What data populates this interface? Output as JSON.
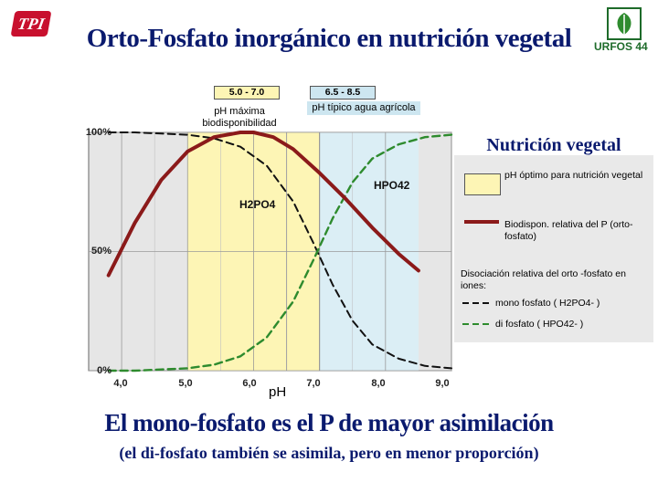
{
  "header": {
    "title": "Orto-Fosfato inorgánico en nutrición vegetal",
    "logo_left": "TPI",
    "logo_right": "URFOS 44"
  },
  "ranges": [
    {
      "range": "5.0 - 7.0",
      "label": "pH máxima biodisponibilidad"
    },
    {
      "range": "6.5 - 8.5",
      "label": "pH típico agua agrícola"
    }
  ],
  "legend": {
    "title": "Nutrición vegetal",
    "optimal": "pH óptimo para nutrición vegetal",
    "biodisp": "Biodispon. relativa del P (orto-fosfato)",
    "dissoc_title": "Disociación relativa del orto -fosfato en iones:",
    "mono": "mono fosfato ( H2PO4- )",
    "di": "di fosfato ( HPO42- )"
  },
  "labels": {
    "h2po4": "H2PO4",
    "hpo4": "HPO42"
  },
  "footer": {
    "title": "El mono-fosfato es el P de mayor asimilación",
    "subtitle": "(el di-fosfato también se asimila, pero en menor proporción)"
  },
  "colors": {
    "biodisp": "#8b1a1a",
    "mono": "#111111",
    "di": "#2e8b2e",
    "optimal_zone": "#fdf5b5",
    "water_zone": "#dbeef5",
    "plot_bg": "#e6e6e6",
    "title": "#0a1a6e"
  },
  "chart_data": {
    "type": "line",
    "xlabel": "pH",
    "ylabel": "",
    "xlim": [
      3.5,
      9.0
    ],
    "ylim": [
      0,
      100
    ],
    "x_ticks": [
      "4,0",
      "5,0",
      "6,0",
      "7,0",
      "8,0",
      "9,0"
    ],
    "y_ticks": [
      "100%",
      "50%",
      "0%"
    ],
    "grid": true,
    "zones": [
      {
        "name": "pH óptimo",
        "from": 5.0,
        "to": 7.0
      },
      {
        "name": "pH típico agua",
        "from": 6.5,
        "to": 8.5
      }
    ],
    "series": [
      {
        "name": "Biodispon. relativa del P (orto-fosfato)",
        "style": "solid",
        "x": [
          3.8,
          4.2,
          4.6,
          5.0,
          5.4,
          5.8,
          6.0,
          6.3,
          6.6,
          7.0,
          7.4,
          7.8,
          8.2,
          8.5
        ],
        "y": [
          40,
          62,
          80,
          92,
          98,
          100,
          100,
          98,
          93,
          83,
          72,
          60,
          49,
          42
        ]
      },
      {
        "name": "mono fosfato ( H2PO4- )",
        "style": "dashed",
        "x": [
          3.8,
          4.2,
          4.6,
          5.0,
          5.4,
          5.8,
          6.2,
          6.6,
          6.9,
          7.2,
          7.5,
          7.8,
          8.2,
          8.6,
          9.0
        ],
        "y": [
          100,
          100,
          99.5,
          99,
          97.5,
          94,
          86,
          71,
          54,
          36,
          21,
          11,
          5,
          2,
          1
        ]
      },
      {
        "name": "di fosfato ( HPO42- )",
        "style": "dashed",
        "x": [
          3.8,
          4.2,
          4.6,
          5.0,
          5.4,
          5.8,
          6.2,
          6.6,
          6.9,
          7.2,
          7.5,
          7.8,
          8.2,
          8.6,
          9.0
        ],
        "y": [
          0,
          0,
          0.5,
          1,
          2.5,
          6,
          14,
          29,
          46,
          64,
          79,
          89,
          95,
          98,
          99
        ]
      }
    ]
  }
}
